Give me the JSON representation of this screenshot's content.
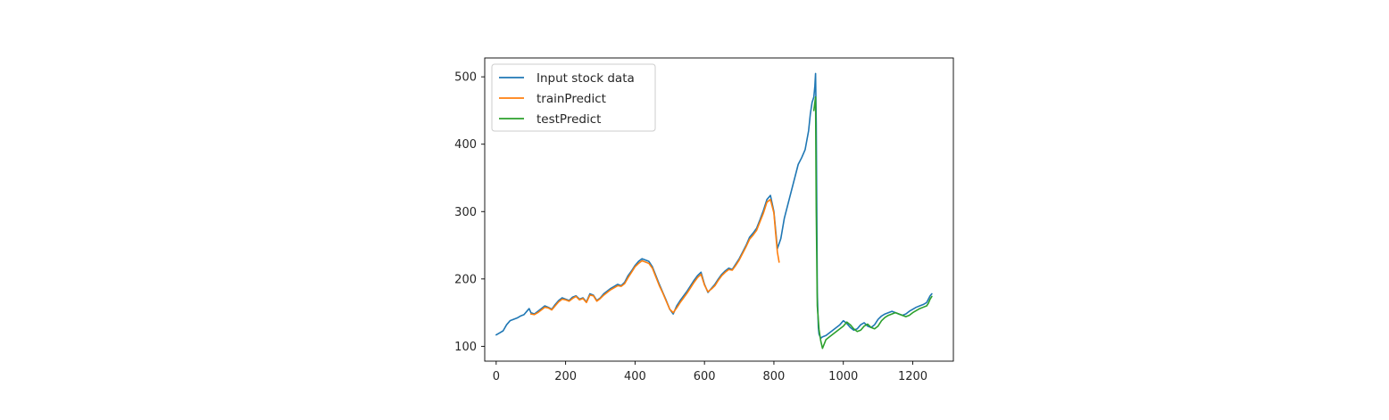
{
  "chart_data": {
    "type": "line",
    "title": "",
    "xlabel": "",
    "ylabel": "",
    "xlim": [
      -33,
      1317
    ],
    "ylim": [
      78,
      528
    ],
    "xticks": [
      0,
      200,
      400,
      600,
      800,
      1000,
      1200
    ],
    "yticks": [
      100,
      200,
      300,
      400,
      500
    ],
    "grid": false,
    "legend_position": "upper-left",
    "series": [
      {
        "name": "Input stock data",
        "color": "#1f77b4",
        "x": [
          0,
          10,
          20,
          30,
          40,
          50,
          60,
          70,
          80,
          90,
          95,
          100,
          110,
          120,
          130,
          140,
          150,
          160,
          170,
          180,
          190,
          200,
          210,
          220,
          230,
          240,
          250,
          260,
          270,
          280,
          290,
          300,
          310,
          320,
          330,
          340,
          350,
          360,
          370,
          380,
          390,
          400,
          410,
          420,
          430,
          440,
          450,
          460,
          470,
          480,
          490,
          500,
          510,
          520,
          530,
          540,
          550,
          560,
          570,
          580,
          590,
          600,
          610,
          620,
          630,
          640,
          650,
          660,
          670,
          680,
          690,
          700,
          710,
          720,
          730,
          740,
          750,
          760,
          770,
          780,
          790,
          800,
          810,
          820,
          830,
          840,
          850,
          860,
          870,
          880,
          890,
          900,
          905,
          910,
          915,
          918,
          920,
          922,
          925,
          928,
          930,
          935,
          940,
          950,
          960,
          970,
          980,
          990,
          1000,
          1010,
          1020,
          1030,
          1040,
          1050,
          1060,
          1070,
          1080,
          1090,
          1100,
          1110,
          1120,
          1130,
          1140,
          1150,
          1160,
          1170,
          1180,
          1190,
          1200,
          1210,
          1220,
          1230,
          1240,
          1245,
          1250,
          1255
        ],
        "y": [
          117,
          120,
          123,
          132,
          138,
          140,
          142,
          145,
          147,
          153,
          156,
          150,
          148,
          152,
          156,
          160,
          158,
          155,
          162,
          168,
          172,
          170,
          168,
          173,
          175,
          170,
          172,
          166,
          178,
          176,
          168,
          172,
          178,
          182,
          186,
          189,
          192,
          190,
          195,
          205,
          212,
          220,
          226,
          230,
          228,
          226,
          218,
          205,
          192,
          180,
          168,
          155,
          148,
          160,
          168,
          175,
          182,
          190,
          198,
          205,
          210,
          192,
          180,
          186,
          192,
          200,
          207,
          212,
          216,
          214,
          222,
          230,
          240,
          250,
          262,
          268,
          275,
          288,
          302,
          318,
          324,
          300,
          245,
          260,
          290,
          310,
          330,
          350,
          370,
          380,
          392,
          420,
          445,
          462,
          470,
          486,
          505,
          430,
          180,
          128,
          118,
          112,
          114,
          116,
          120,
          124,
          128,
          132,
          138,
          134,
          128,
          124,
          126,
          132,
          135,
          130,
          128,
          132,
          140,
          145,
          148,
          150,
          152,
          150,
          148,
          146,
          148,
          152,
          155,
          158,
          160,
          162,
          165,
          170,
          175,
          178
        ]
      },
      {
        "name": "trainPredict",
        "color": "#ff7f0e",
        "x": [
          100,
          110,
          120,
          130,
          140,
          150,
          160,
          170,
          180,
          190,
          200,
          210,
          220,
          230,
          240,
          250,
          260,
          270,
          280,
          290,
          300,
          310,
          320,
          330,
          340,
          350,
          360,
          370,
          380,
          390,
          400,
          410,
          420,
          430,
          440,
          450,
          460,
          470,
          480,
          490,
          500,
          510,
          520,
          530,
          540,
          550,
          560,
          570,
          580,
          590,
          600,
          610,
          620,
          630,
          640,
          650,
          660,
          670,
          680,
          690,
          700,
          710,
          720,
          730,
          740,
          750,
          760,
          770,
          780,
          790,
          800,
          805,
          810,
          815
        ],
        "y": [
          148,
          147,
          150,
          154,
          158,
          157,
          154,
          160,
          166,
          170,
          169,
          167,
          171,
          174,
          169,
          171,
          165,
          176,
          175,
          167,
          171,
          176,
          180,
          184,
          187,
          190,
          189,
          193,
          202,
          210,
          218,
          223,
          227,
          225,
          223,
          216,
          203,
          190,
          179,
          167,
          155,
          150,
          157,
          165,
          172,
          179,
          187,
          195,
          202,
          207,
          191,
          181,
          185,
          190,
          198,
          205,
          210,
          214,
          213,
          220,
          228,
          238,
          248,
          259,
          265,
          272,
          285,
          298,
          314,
          318,
          298,
          268,
          240,
          225
        ]
      },
      {
        "name": "testPredict",
        "color": "#2ca02c",
        "x": [
          915,
          918,
          920,
          922,
          925,
          930,
          935,
          940,
          950,
          960,
          970,
          980,
          990,
          1000,
          1010,
          1020,
          1030,
          1040,
          1050,
          1060,
          1070,
          1080,
          1090,
          1100,
          1110,
          1120,
          1130,
          1140,
          1150,
          1160,
          1170,
          1180,
          1190,
          1200,
          1210,
          1220,
          1230,
          1240,
          1245,
          1250,
          1255
        ],
        "y": [
          450,
          462,
          470,
          300,
          160,
          125,
          108,
          97,
          110,
          114,
          118,
          122,
          126,
          130,
          136,
          132,
          126,
          122,
          124,
          130,
          133,
          128,
          126,
          130,
          138,
          143,
          146,
          148,
          150,
          148,
          146,
          144,
          146,
          150,
          153,
          156,
          158,
          160,
          164,
          170,
          174
        ]
      }
    ]
  }
}
